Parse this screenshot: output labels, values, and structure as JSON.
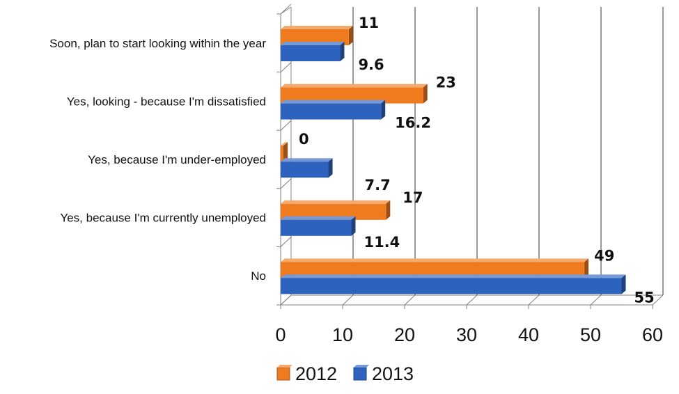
{
  "chart_data": {
    "type": "bar",
    "orientation": "horizontal",
    "categories": [
      "Soon, plan to start looking within the year",
      "Yes, looking - because I'm dissatisfied",
      "Yes, because I'm under-employed",
      "Yes, because I'm currently unemployed",
      "No"
    ],
    "series": [
      {
        "name": "2012",
        "values": [
          11,
          23,
          0,
          17,
          49
        ],
        "labels": [
          "11",
          "23",
          "0",
          "17",
          "49"
        ],
        "color": "#f07a1e"
      },
      {
        "name": "2013",
        "values": [
          9.6,
          16.2,
          7.7,
          11.4,
          55
        ],
        "labels": [
          "9.6",
          "16.2",
          "7.7",
          "11.4",
          "55"
        ],
        "color": "#2e62bf"
      }
    ],
    "xlim": [
      0,
      60
    ],
    "xticks": [
      "0",
      "10",
      "20",
      "30",
      "40",
      "50",
      "60"
    ],
    "grid": true,
    "legend_position": "bottom",
    "style": "3d"
  }
}
